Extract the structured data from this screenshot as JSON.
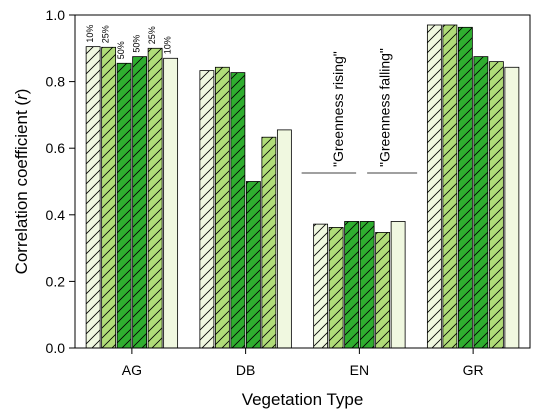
{
  "chart_data": {
    "type": "bar",
    "xlabel": "Vegetation Type",
    "ylabel": "Correlation coefficient (r)",
    "ylabel_prefix": "Correlation coefficient (",
    "ylabel_var": "r",
    "ylabel_suffix": ")",
    "ylim": [
      0,
      1.0
    ],
    "yticks": [
      "0.0",
      "0.2",
      "0.4",
      "0.6",
      "0.8",
      "1.0"
    ],
    "categories": [
      "AG",
      "DB",
      "EN",
      "GR"
    ],
    "bar_styles": [
      {
        "color": "#f0f8e0",
        "hatch": true
      },
      {
        "color": "#b0dc78",
        "hatch": true
      },
      {
        "color": "#2fae2f",
        "hatch": true
      },
      {
        "color": "#2fae2f",
        "hatch": true
      },
      {
        "color": "#b0dc78",
        "hatch": true
      },
      {
        "color": "#f0f8e0",
        "hatch": false
      }
    ],
    "series": [
      {
        "values": [
          0.905,
          0.833,
          0.372,
          0.97
        ]
      },
      {
        "values": [
          0.903,
          0.843,
          0.362,
          0.97
        ]
      },
      {
        "values": [
          0.855,
          0.827,
          0.38,
          0.963
        ]
      },
      {
        "values": [
          0.875,
          0.5,
          0.38,
          0.875
        ]
      },
      {
        "values": [
          0.9,
          0.633,
          0.347,
          0.86
        ]
      },
      {
        "values": [
          0.87,
          0.655,
          0.38,
          0.843
        ]
      }
    ],
    "bar_labels": [
      "10%",
      "25%",
      "50%",
      "50%",
      "25%",
      "10%"
    ],
    "annotations": [
      "\"Greenness rising\"",
      "\"Greenness falling\""
    ]
  }
}
